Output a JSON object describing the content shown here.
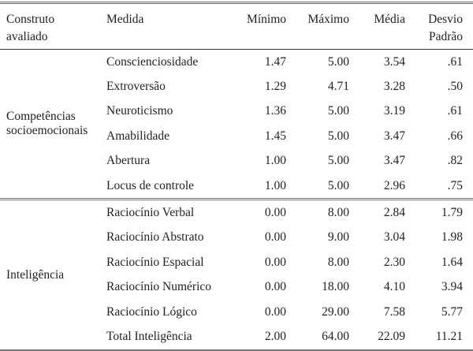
{
  "headers": {
    "construct": [
      "Construto",
      "avaliado"
    ],
    "measure": "Medida",
    "min": "Mínimo",
    "max": "Máximo",
    "mean": "Média",
    "sd": [
      "Desvio",
      "Padrão"
    ]
  },
  "sections": [
    {
      "construct": [
        "Competências",
        "socioemocionais"
      ],
      "rows": [
        {
          "measure": "Conscienciosidade",
          "min": "1.47",
          "max": "5.00",
          "mean": "3.54",
          "sd": ".61"
        },
        {
          "measure": "Extroversão",
          "min": "1.29",
          "max": "4.71",
          "mean": "3.28",
          "sd": ".50"
        },
        {
          "measure": "Neuroticismo",
          "min": "1.36",
          "max": "5.00",
          "mean": "3.19",
          "sd": ".61"
        },
        {
          "measure": "Amabilidade",
          "min": "1.45",
          "max": "5.00",
          "mean": "3.47",
          "sd": ".66"
        },
        {
          "measure": "Abertura",
          "min": "1.00",
          "max": "5.00",
          "mean": "3.47",
          "sd": ".82"
        },
        {
          "measure": "Locus de controle",
          "min": "1.00",
          "max": "5.00",
          "mean": "2.96",
          "sd": ".75"
        }
      ]
    },
    {
      "construct": [
        "Inteligência"
      ],
      "rows": [
        {
          "measure": "Raciocínio Verbal",
          "min": "0.00",
          "max": "8.00",
          "mean": "2.84",
          "sd": "1.79"
        },
        {
          "measure": "Raciocínio Abstrato",
          "min": "0.00",
          "max": "9.00",
          "mean": "3.04",
          "sd": "1.98"
        },
        {
          "measure": "Raciocínio Espacial",
          "min": "0.00",
          "max": "8.00",
          "mean": "2.30",
          "sd": "1.64"
        },
        {
          "measure": "Raciocínio Numérico",
          "min": "0.00",
          "max": "18.00",
          "mean": "4.10",
          "sd": "3.94"
        },
        {
          "measure": "Raciocínio Lógico",
          "min": "0.00",
          "max": "29.00",
          "mean": "7.58",
          "sd": "5.77"
        },
        {
          "measure": "Total Inteligência",
          "min": "2.00",
          "max": "64.00",
          "mean": "22.09",
          "sd": "11.21"
        }
      ]
    }
  ]
}
